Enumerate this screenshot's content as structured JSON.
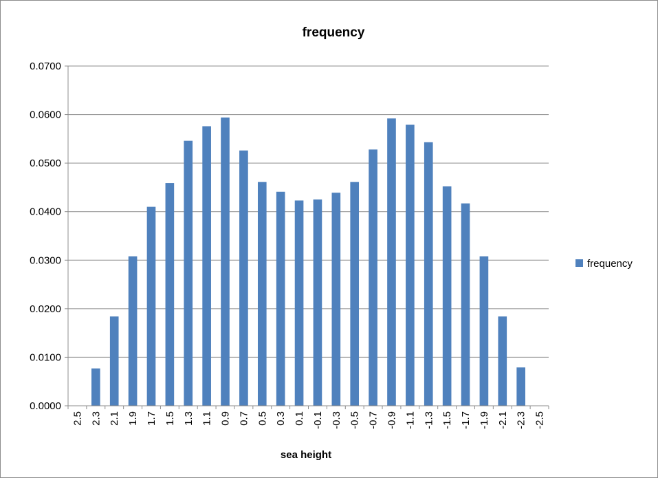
{
  "chart_data": {
    "type": "bar",
    "title": "frequency",
    "xlabel": "sea height",
    "ylabel": "",
    "ylim": [
      0,
      0.07
    ],
    "yticks": [
      "0.0000",
      "0.0100",
      "0.0200",
      "0.0300",
      "0.0400",
      "0.0500",
      "0.0600",
      "0.0700"
    ],
    "grid": true,
    "legend_position": "right",
    "categories": [
      "2.5",
      "2.3",
      "2.1",
      "1.9",
      "1.7",
      "1.5",
      "1.3",
      "1.1",
      "0.9",
      "0.7",
      "0.5",
      "0.3",
      "0.1",
      "-0.1",
      "-0.3",
      "-0.5",
      "-0.7",
      "-0.9",
      "-1.1",
      "-1.3",
      "-1.5",
      "-1.7",
      "-1.9",
      "-2.1",
      "-2.3",
      "-2.5"
    ],
    "series": [
      {
        "name": "frequency",
        "color": "#4f81bd",
        "values": [
          0,
          0.0077,
          0.0184,
          0.0308,
          0.041,
          0.0459,
          0.0546,
          0.0576,
          0.0594,
          0.0526,
          0.0461,
          0.0441,
          0.0423,
          0.0425,
          0.0439,
          0.0461,
          0.0528,
          0.0592,
          0.0579,
          0.0543,
          0.0452,
          0.0417,
          0.0308,
          0.0184,
          0.0079,
          0
        ]
      }
    ]
  }
}
